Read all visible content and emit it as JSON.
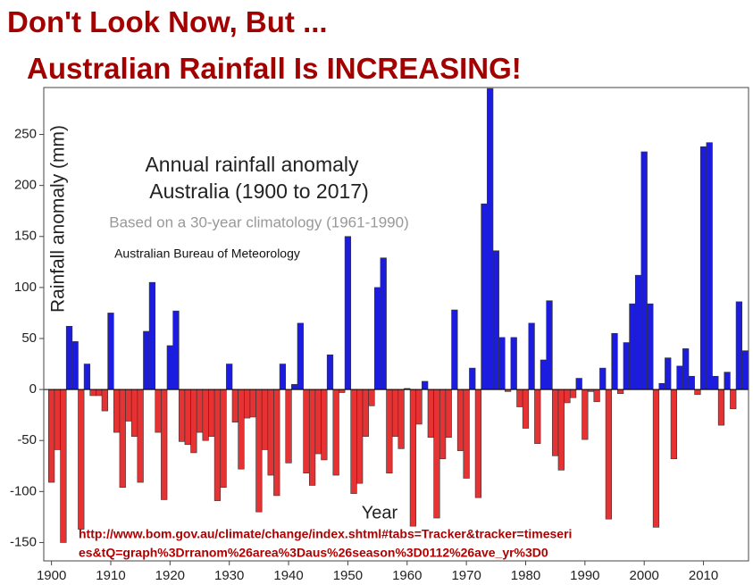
{
  "chart_data": {
    "type": "bar",
    "title": [
      "Don't Look Now, But ...",
      "Australian Rainfall Is INCREASING!"
    ],
    "annotations": [
      "Annual rainfall anomaly",
      "Australia (1900 to 2017)",
      "Based on a 30-year climatology (1961-1990)",
      "Australian Bureau of Meteorology"
    ],
    "source": [
      "http://www.bom.gov.au/climate/change/index.shtml#tabs=Tracker&tracker=timeseri",
      "es&tQ=graph%3Drranom%26area%3Daus%26season%3D0112%26ave_yr%3D0"
    ],
    "xlabel": "Year",
    "ylabel": "Rainfall anomaly (mm)",
    "x": [
      1900,
      1901,
      1902,
      1903,
      1904,
      1905,
      1906,
      1907,
      1908,
      1909,
      1910,
      1911,
      1912,
      1913,
      1914,
      1915,
      1916,
      1917,
      1918,
      1919,
      1920,
      1921,
      1922,
      1923,
      1924,
      1925,
      1926,
      1927,
      1928,
      1929,
      1930,
      1931,
      1932,
      1933,
      1934,
      1935,
      1936,
      1937,
      1938,
      1939,
      1940,
      1941,
      1942,
      1943,
      1944,
      1945,
      1946,
      1947,
      1948,
      1949,
      1950,
      1951,
      1952,
      1953,
      1954,
      1955,
      1956,
      1957,
      1958,
      1959,
      1960,
      1961,
      1962,
      1963,
      1964,
      1965,
      1966,
      1967,
      1968,
      1969,
      1970,
      1971,
      1972,
      1973,
      1974,
      1975,
      1976,
      1977,
      1978,
      1979,
      1980,
      1981,
      1982,
      1983,
      1984,
      1985,
      1986,
      1987,
      1988,
      1989,
      1990,
      1991,
      1992,
      1993,
      1994,
      1995,
      1996,
      1997,
      1998,
      1999,
      2000,
      2001,
      2002,
      2003,
      2004,
      2005,
      2006,
      2007,
      2008,
      2009,
      2010,
      2011,
      2012,
      2013,
      2014,
      2015,
      2016,
      2017
    ],
    "values": [
      -91,
      -59,
      -150,
      62,
      47,
      -137,
      25,
      -6,
      -6,
      -21,
      75,
      -42,
      -96,
      -31,
      -46,
      -91,
      57,
      105,
      -42,
      -108,
      43,
      77,
      -51,
      -54,
      -62,
      -42,
      -50,
      -46,
      -109,
      -96,
      25,
      -32,
      -78,
      -28,
      -27,
      -120,
      -59,
      -84,
      -104,
      25,
      -72,
      5,
      65,
      -82,
      -94,
      -63,
      -69,
      34,
      -84,
      -3,
      150,
      -102,
      -92,
      -46,
      -16,
      100,
      129,
      -82,
      -46,
      -58,
      1,
      -134,
      -34,
      8,
      -47,
      -126,
      -68,
      -47,
      78,
      -60,
      -87,
      21,
      -106,
      182,
      295,
      136,
      51,
      -2,
      51,
      -17,
      -38,
      65,
      -53,
      29,
      87,
      -65,
      -79,
      -13,
      -8,
      11,
      -49,
      -2,
      -12,
      21,
      -127,
      55,
      -4,
      46,
      84,
      112,
      233,
      84,
      -135,
      6,
      31,
      -68,
      23,
      40,
      13,
      -5,
      238,
      242,
      13,
      -35,
      17,
      -19,
      86,
      38
    ],
    "positive_color": "#1c1ce0",
    "negative_color": "#e63232",
    "xlim": [
      1898.7,
      2017.6
    ],
    "ylim": [
      -168,
      296
    ],
    "xticks": [
      1900,
      1910,
      1920,
      1930,
      1940,
      1950,
      1960,
      1970,
      1980,
      1990,
      2000,
      2010
    ],
    "yticks": [
      -150,
      -100,
      -50,
      0,
      50,
      100,
      150,
      200,
      250
    ]
  }
}
